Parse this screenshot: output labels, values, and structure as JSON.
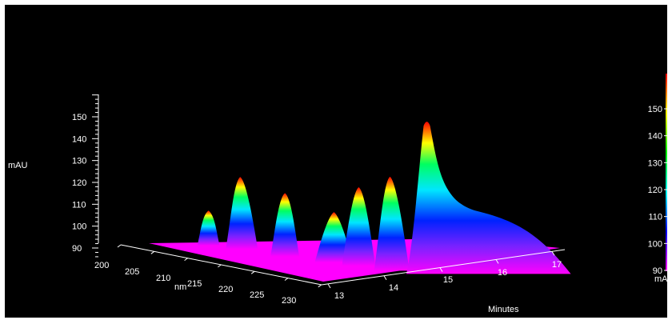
{
  "chart_data": {
    "type": "surface",
    "title": "",
    "z_axis": {
      "label": "mAU",
      "ticks": [
        90,
        100,
        110,
        120,
        130,
        140,
        150
      ]
    },
    "x_axis": {
      "label": "nm",
      "ticks": [
        200,
        205,
        210,
        215,
        220,
        225,
        230
      ]
    },
    "y_axis": {
      "label": "Minutes",
      "ticks": [
        13,
        14,
        15,
        16,
        17
      ]
    },
    "colorbar": {
      "label": "mAU",
      "ticks": [
        90,
        100,
        110,
        120,
        130,
        140,
        150
      ],
      "colors": [
        "#ff00ff",
        "#0000ff",
        "#00ffff",
        "#00ff00",
        "#ffff00",
        "#ff0000"
      ]
    },
    "peaks": [
      {
        "minutes": 13.7,
        "nm": 204,
        "max_mAU": 106
      },
      {
        "minutes": 13.9,
        "nm": 207,
        "max_mAU": 123
      },
      {
        "minutes": 14.1,
        "nm": 213,
        "max_mAU": 119
      },
      {
        "minutes": 14.4,
        "nm": 218,
        "max_mAU": 113
      },
      {
        "minutes": 14.6,
        "nm": 221,
        "max_mAU": 126
      },
      {
        "minutes": 14.8,
        "nm": 225,
        "max_mAU": 133
      },
      {
        "minutes": 15.2,
        "nm": 228,
        "max_mAU": 160
      }
    ]
  }
}
